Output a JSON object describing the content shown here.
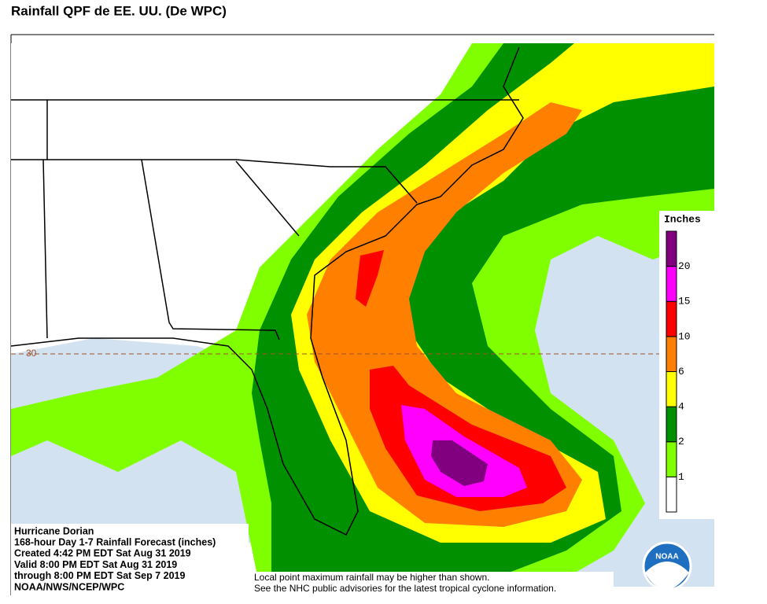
{
  "header": {
    "title": "Rainfall QPF de EE. UU. (De WPC)"
  },
  "map": {
    "latitude_label": "30"
  },
  "legend": {
    "title": "Inches",
    "breaks": [
      1,
      2,
      4,
      6,
      10,
      15,
      20
    ],
    "colors": [
      "#ffffff",
      "#7fff00",
      "#009000",
      "#ffff00",
      "#ff8000",
      "#ff0000",
      "#ff00ff",
      "#800080"
    ]
  },
  "info_box": {
    "lines": [
      "Hurricane Dorian",
      "168-hour Day 1-7 Rainfall Forecast (inches)",
      "Created 4:42 PM EDT Sat Aug 31 2019",
      "Valid 8:00 PM EDT Sat Aug 31 2019",
      "through 8:00 PM EDT Sat Sep 7 2019",
      "NOAA/NWS/NCEP/WPC"
    ]
  },
  "note": {
    "lines": [
      "Local point maximum rainfall may be higher than shown.",
      "See the NHC public advisories for the latest tropical cyclone information."
    ]
  },
  "logo": {
    "text": "NOAA"
  }
}
